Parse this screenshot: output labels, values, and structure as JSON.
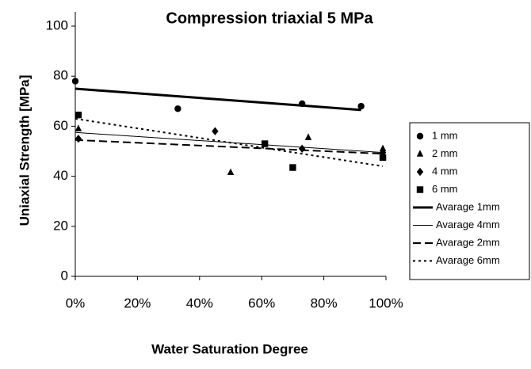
{
  "chart_data": {
    "type": "scatter",
    "title": "Compression triaxial 5 MPa",
    "x_label": "Water Saturation Degree",
    "y_label": "Uniaxial Strength [MPa]",
    "xlim": [
      0,
      100
    ],
    "xticks": [
      {
        "value": 0,
        "label": "0%"
      },
      {
        "value": 20,
        "label": "20%"
      },
      {
        "value": 40,
        "label": "40%"
      },
      {
        "value": 60,
        "label": "60%"
      },
      {
        "value": 80,
        "label": "80%"
      },
      {
        "value": 100,
        "label": "100%"
      }
    ],
    "ylim": [
      0,
      100
    ],
    "yticks": [
      0,
      20,
      40,
      60,
      80,
      100
    ],
    "legend": "right",
    "series": [
      {
        "name": "1 mm",
        "color": "#000000",
        "marker": "circle",
        "x": [
          0,
          33,
          73,
          92
        ],
        "values": [
          78,
          67,
          69,
          68
        ]
      },
      {
        "name": "2 mm",
        "color": "#000000",
        "marker": "triangle",
        "x": [
          1,
          50,
          75,
          99
        ],
        "values": [
          59,
          41.5,
          55.5,
          51
        ]
      },
      {
        "name": "4 mm",
        "color": "#000000",
        "marker": "diamond",
        "x": [
          1,
          45,
          73,
          99
        ],
        "values": [
          55,
          58,
          51,
          49.5
        ]
      },
      {
        "name": "6 mm",
        "color": "#000000",
        "marker": "square",
        "x": [
          1,
          61,
          70,
          99
        ],
        "values": [
          64.5,
          53,
          43.5,
          47.5
        ]
      },
      {
        "name": "Avarage 1mm",
        "color": "#000000",
        "line": "thick",
        "x": [
          0,
          92
        ],
        "values": [
          75,
          66.5
        ]
      },
      {
        "name": "Avarage 4mm",
        "color": "#000000",
        "line": "thin",
        "x": [
          0,
          99
        ],
        "values": [
          57.5,
          49.5
        ]
      },
      {
        "name": "Avarage 2mm",
        "color": "#000000",
        "line": "dashed",
        "x": [
          0,
          99
        ],
        "values": [
          54.5,
          49
        ]
      },
      {
        "name": "Avarage 6mm",
        "color": "#000000",
        "line": "dotted",
        "x": [
          0,
          99
        ],
        "values": [
          63,
          44
        ]
      }
    ]
  }
}
